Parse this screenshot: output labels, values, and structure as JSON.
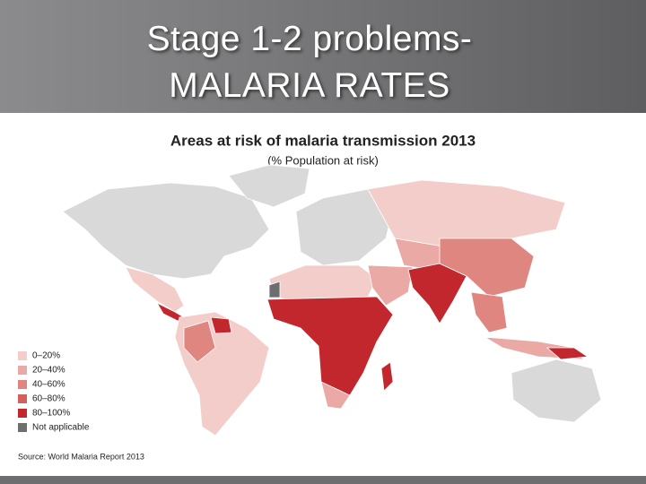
{
  "slide": {
    "title_lines": [
      "Stage 1-2 problems-",
      "MALARIA RATES"
    ],
    "map_title": "Areas at risk of malaria transmission 2013",
    "map_subtitle": "(% Population at risk)",
    "legend": [
      {
        "label": "0–20%",
        "color": "#f3cdca"
      },
      {
        "label": "20–40%",
        "color": "#eaa9a4"
      },
      {
        "label": "40–60%",
        "color": "#df8680"
      },
      {
        "label": "60–80%",
        "color": "#d3605a"
      },
      {
        "label": "80–100%",
        "color": "#c1272d"
      },
      {
        "label": "Not applicable",
        "color": "#6d6e70"
      }
    ],
    "source": "Source: World Malaria Report 2013"
  }
}
